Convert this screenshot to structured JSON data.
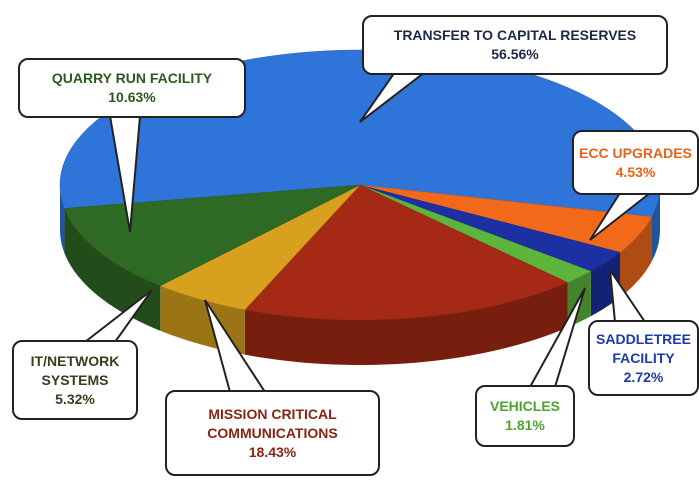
{
  "chart_data": {
    "type": "pie3d",
    "categories": [
      "TRANSFER TO CAPITAL RESERVES",
      "ECC UPGRADES",
      "SADDLETREE FACILITY",
      "VEHICLES",
      "MISSION CRITICAL COMMUNICATIONS",
      "IT/NETWORK SYSTEMS",
      "QUARRY RUN FACILITY"
    ],
    "values": [
      56.56,
      4.53,
      2.72,
      1.81,
      18.43,
      5.32,
      10.63
    ],
    "value_labels": [
      "56.56%",
      "4.53%",
      "2.72%",
      "1.81%",
      "18.43%",
      "5.32%",
      "10.63%"
    ],
    "colors": [
      "#2f74d8",
      "#f2691a",
      "#1c2fa3",
      "#5cb63c",
      "#a52914",
      "#d7a11f",
      "#2f6a24"
    ],
    "label_colors": [
      "#1e2947",
      "#e8621a",
      "#1c3aa8",
      "#4aa52e",
      "#8a2412",
      "#3d3a1e",
      "#2a5a1e"
    ]
  }
}
